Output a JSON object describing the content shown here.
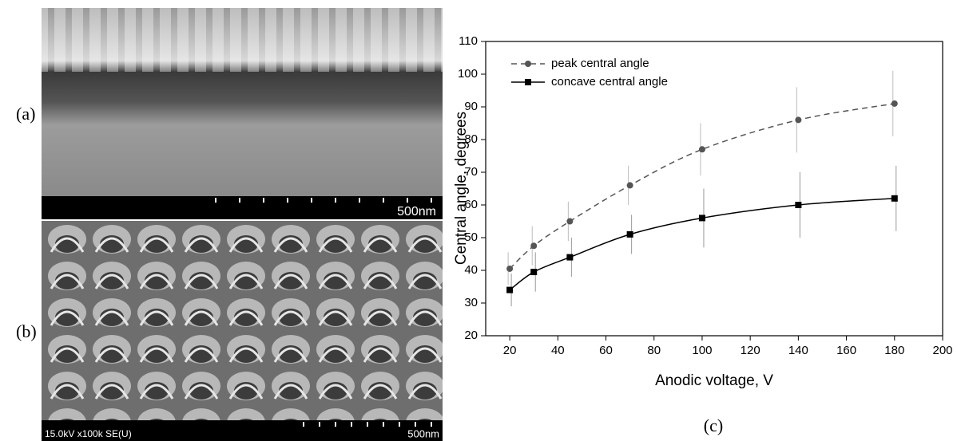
{
  "panels": [
    {
      "label": "(a)",
      "scale_text": "500nm"
    },
    {
      "label": "(b)",
      "info_text": "15.0kV x100k SE(U)",
      "scale_text": "500nm"
    }
  ],
  "chart_data": {
    "type": "line",
    "caption": "(c)",
    "x_label": "Anodic voltage, V",
    "y_label": "Central angle, degrees",
    "x": [
      20,
      30,
      45,
      70,
      100,
      140,
      180
    ],
    "series": [
      {
        "name": "peak central angle",
        "color": "#555555",
        "line_style": "dashed",
        "marker": "circle",
        "values": [
          40.5,
          47.5,
          55,
          66,
          77,
          86,
          91
        ],
        "errors": [
          5,
          6,
          6,
          6,
          8,
          10,
          10
        ]
      },
      {
        "name": "concave central angle",
        "color": "#000000",
        "line_style": "solid",
        "marker": "square",
        "values": [
          34,
          39.5,
          44,
          51,
          56,
          60,
          62
        ],
        "errors": [
          5,
          6,
          6,
          6,
          9,
          10,
          10
        ]
      }
    ],
    "xlim": [
      10,
      200
    ],
    "xticks": [
      20,
      40,
      60,
      80,
      100,
      120,
      140,
      160,
      180,
      200
    ],
    "ylim": [
      20,
      110
    ],
    "yticks": [
      20,
      30,
      40,
      50,
      60,
      70,
      80,
      90,
      100,
      110
    ],
    "legend": "upper left"
  }
}
